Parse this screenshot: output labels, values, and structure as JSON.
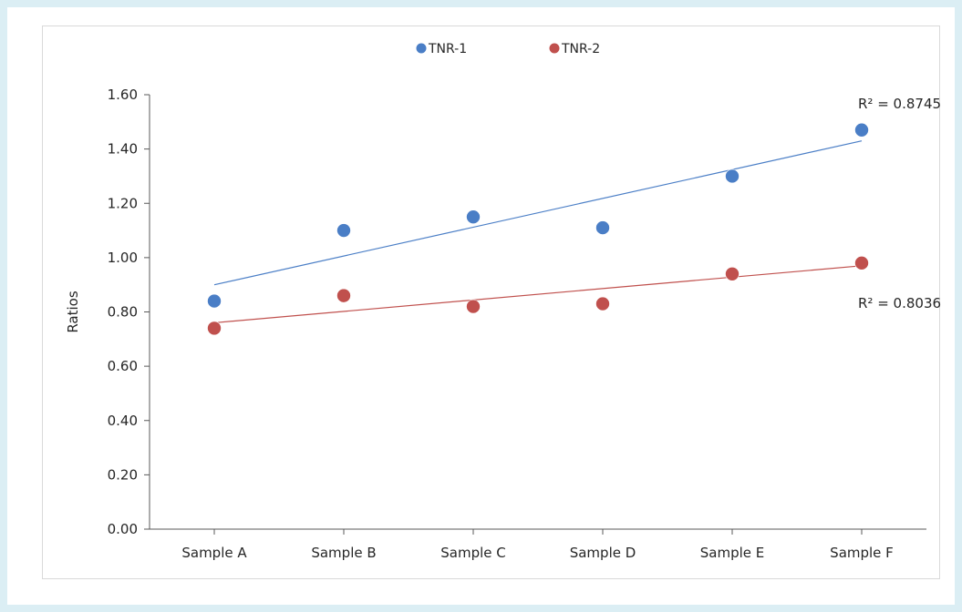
{
  "chart_data": {
    "type": "scatter",
    "categories": [
      "Sample A",
      "Sample B",
      "Sample C",
      "Sample D",
      "Sample E",
      "Sample F"
    ],
    "series": [
      {
        "name": "TNR-1",
        "color": "#4a7ec6",
        "values": [
          0.84,
          1.1,
          1.15,
          1.11,
          1.3,
          1.47
        ],
        "trendline": {
          "start": 0.9,
          "end": 1.43,
          "r2_label": "R² = 0.8745"
        }
      },
      {
        "name": "TNR-2",
        "color": "#c0504d",
        "values": [
          0.74,
          0.86,
          0.82,
          0.83,
          0.94,
          0.98
        ],
        "trendline": {
          "start": 0.76,
          "end": 0.97,
          "r2_label": "R² = 0.8036"
        }
      }
    ],
    "ylabel": "Ratios",
    "xlabel": "",
    "ylim": [
      0,
      1.6
    ],
    "y_ticks": [
      "0.00",
      "0.20",
      "0.40",
      "0.60",
      "0.80",
      "1.00",
      "1.20",
      "1.40",
      "1.60"
    ],
    "legend_position": "top-center",
    "grid": false
  }
}
